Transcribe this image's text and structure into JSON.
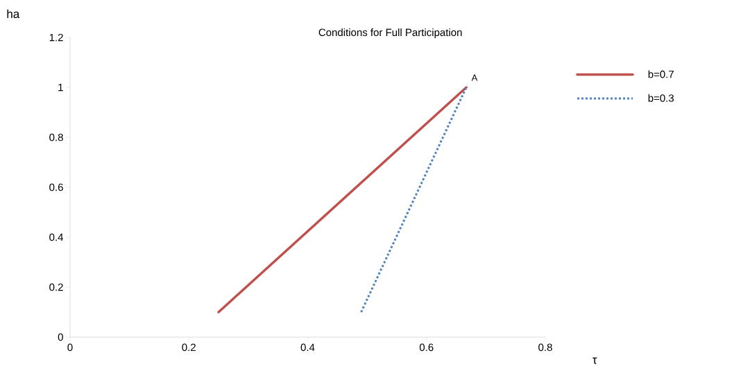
{
  "chart_data": {
    "type": "line",
    "title": "Conditions for Full Participation",
    "xlabel": "τ",
    "ylabel": "ha",
    "xlim": [
      0,
      0.8
    ],
    "ylim": [
      0,
      1.2
    ],
    "xticks": [
      0,
      0.2,
      0.4,
      0.6,
      0.8
    ],
    "yticks": [
      0,
      0.2,
      0.4,
      0.6,
      0.8,
      1,
      1.2
    ],
    "series": [
      {
        "name": "b=0.7",
        "color": "#c0504d",
        "line_style": "solid",
        "x": [
          0.25,
          0.667
        ],
        "values": [
          0.1,
          1
        ]
      },
      {
        "name": "b=0.3",
        "color": "#4f81bd",
        "line_style": "dotted",
        "x": [
          0.49,
          0.667
        ],
        "values": [
          0.1,
          1
        ]
      }
    ],
    "annotations": [
      {
        "text": "A",
        "x": 0.667,
        "y": 1
      }
    ],
    "grid": false,
    "legend": "right"
  }
}
